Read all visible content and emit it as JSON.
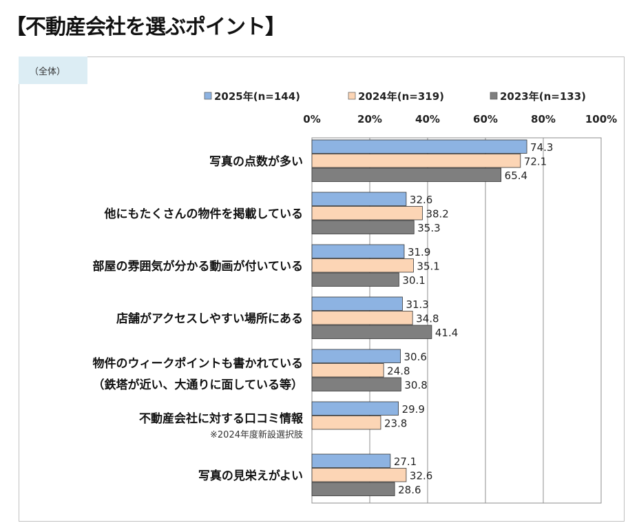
{
  "page_title": "【不動産会社を選ぶポイント】",
  "subset_tag": "（全体）",
  "chart_data": {
    "type": "bar",
    "orientation": "horizontal",
    "title": "【不動産会社を選ぶポイント】",
    "xlim": [
      0,
      100
    ],
    "ticks": [
      "0%",
      "20%",
      "40%",
      "60%",
      "80%",
      "100%"
    ],
    "grid": true,
    "legend_position": "top",
    "categories": [
      {
        "label": "写真の点数が多い",
        "note": ""
      },
      {
        "label": "他にもたくさんの物件を掲載している",
        "note": ""
      },
      {
        "label": "部屋の雰囲気が分かる動画が付いている",
        "note": ""
      },
      {
        "label": "店舗がアクセスしやすい場所にある",
        "note": ""
      },
      {
        "label": "物件のウィークポイントも書かれている",
        "label2": "（鉄塔が近い、大通りに面している等）",
        "note": ""
      },
      {
        "label": "不動産会社に対する口コミ情報",
        "note": "※2024年度新設選択肢"
      },
      {
        "label": "写真の見栄えがよい",
        "note": ""
      }
    ],
    "series": [
      {
        "name": "2025年(n=144)",
        "color": "#8db3e2",
        "values": [
          74.3,
          32.6,
          31.9,
          31.3,
          30.6,
          29.9,
          27.1
        ]
      },
      {
        "name": "2024年(n=319)",
        "color": "#fcd5b5",
        "values": [
          72.1,
          38.2,
          35.1,
          34.8,
          24.8,
          23.8,
          32.6
        ]
      },
      {
        "name": "2023年(n=133)",
        "color": "#7f7f7f",
        "values": [
          65.4,
          35.3,
          30.1,
          41.4,
          30.8,
          null,
          28.6
        ]
      }
    ]
  }
}
